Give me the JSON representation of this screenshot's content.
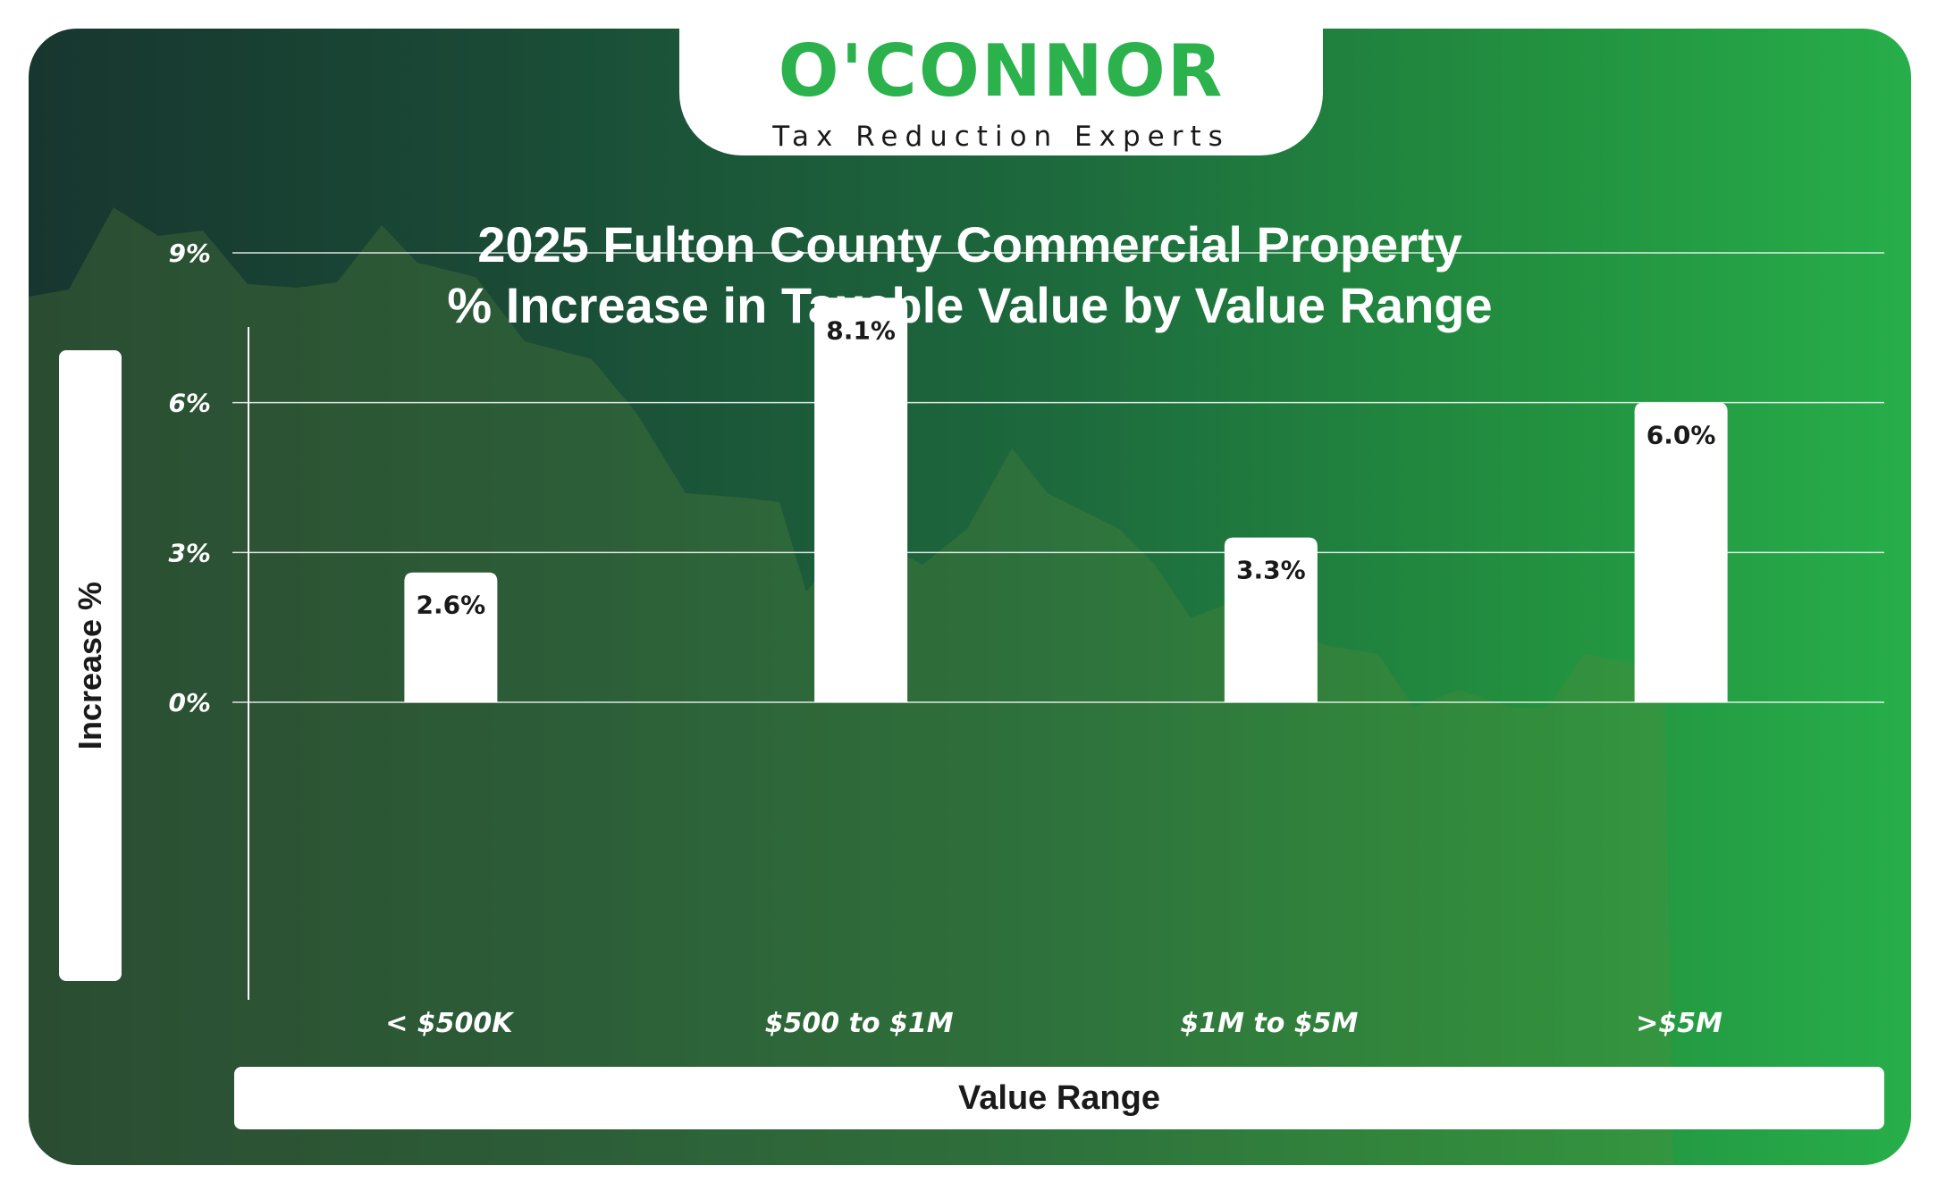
{
  "brand": {
    "logo_text": "O'CONNOR",
    "tagline": "Tax Reduction Experts",
    "logo_color": "#2bb24c"
  },
  "chart_data": {
    "type": "bar",
    "title": "2025 Fulton County Commercial Property",
    "subtitle": "% Increase in Taxable Value by Value Range",
    "xlabel": "Value Range",
    "ylabel": "Increase %",
    "categories": [
      "< $500K",
      "$500 to $1M",
      "$1M to $5M",
      ">$5M"
    ],
    "values": [
      2.6,
      8.1,
      3.3,
      6.0
    ],
    "value_labels": [
      "2.6%",
      "8.1%",
      "3.3%",
      "6.0%"
    ],
    "yticks": [
      0,
      3,
      6,
      9
    ],
    "ytick_labels": [
      "0%",
      "3%",
      "6%",
      "9%"
    ],
    "ylim": [
      0,
      9
    ],
    "grid": true,
    "bar_color": "#ffffff",
    "background_colors": [
      "#17362f",
      "#27ae4a"
    ]
  }
}
